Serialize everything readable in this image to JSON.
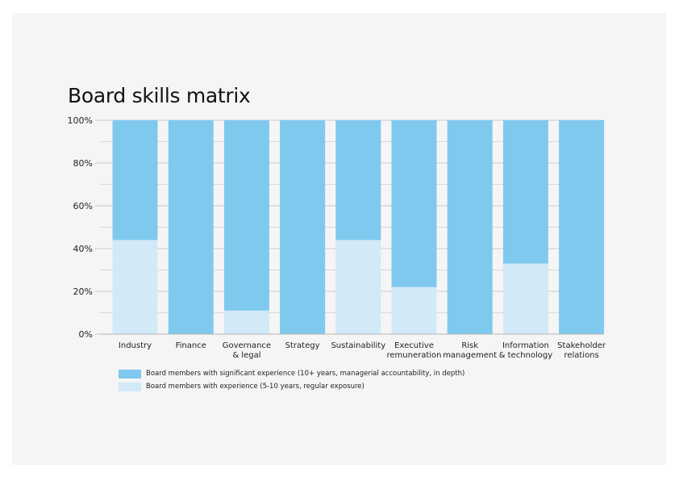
{
  "chart_data": {
    "type": "bar",
    "stacked": true,
    "title": "Board skills matrix",
    "categories": [
      [
        "Industry"
      ],
      [
        "Finance"
      ],
      [
        "Governance",
        "& legal"
      ],
      [
        "Strategy"
      ],
      [
        "Sustainability"
      ],
      [
        "Executive",
        "remuneration"
      ],
      [
        "Risk",
        "management"
      ],
      [
        "Information",
        "& technology"
      ],
      [
        "Stakeholder",
        "relations"
      ]
    ],
    "series": [
      {
        "name": "Board members with experience (5-10 years, regular exposure)",
        "color": "#d2e9f8",
        "values": [
          44,
          0,
          11,
          0,
          44,
          22,
          0,
          33,
          0
        ]
      },
      {
        "name": "Board members with significant experience (10+ years, managerial accountability, in depth)",
        "color": "#7fc9ef",
        "values": [
          56,
          100,
          89,
          100,
          56,
          78,
          100,
          67,
          100
        ]
      }
    ],
    "ylim": [
      0,
      100
    ],
    "yticks": [
      {
        "value": 0,
        "label": "0%"
      },
      {
        "value": 20,
        "label": "20%"
      },
      {
        "value": 40,
        "label": "40%"
      },
      {
        "value": 60,
        "label": "60%"
      },
      {
        "value": 80,
        "label": "80%"
      },
      {
        "value": 100,
        "label": "100%"
      }
    ],
    "grid": true,
    "legend": {
      "placement": "bottom",
      "items": [
        {
          "label": "Board members with significant experience (10+ years, managerial accountability, in depth)",
          "color": "#7fc9ef"
        },
        {
          "label": "Board members with experience (5-10 years, regular exposure)",
          "color": "#d2e9f8"
        }
      ]
    }
  }
}
